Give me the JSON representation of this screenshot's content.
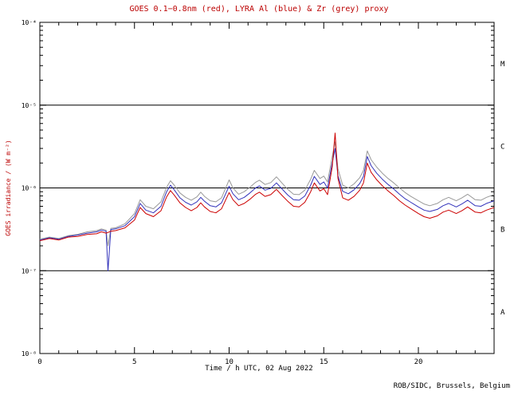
{
  "chart_data": {
    "type": "line",
    "title": "GOES 0.1−0.8nm (red), LYRA Al (blue) & Zr (grey) proxy",
    "xlabel": "Time / h UTC, 02 Aug 2022",
    "ylabel": "GOES irradiance / (W m⁻²)",
    "x_range": [
      0,
      24
    ],
    "x_major_ticks": [
      0,
      5,
      10,
      15,
      20
    ],
    "x_tick_labels": [
      "0",
      "5",
      "10",
      "15",
      "20"
    ],
    "x_minor_step": 1,
    "y_scale": "log",
    "ylim": [
      1e-08,
      0.0001
    ],
    "y_decades": [
      -4,
      -5,
      -6,
      -7,
      -8
    ],
    "y_tick_labels": [
      "10⁻⁴",
      "10⁻⁵",
      "10⁻⁶",
      "10⁻⁷",
      "10⁻⁸"
    ],
    "hlines": [
      1e-05,
      1e-06,
      1e-07
    ],
    "grid": "off",
    "legend": "in-title",
    "flare_classes": [
      {
        "label": "M",
        "log_center": -4.5
      },
      {
        "label": "C",
        "log_center": -5.5
      },
      {
        "label": "B",
        "log_center": -6.5
      },
      {
        "label": "A",
        "log_center": -7.5
      }
    ],
    "x": [
      0,
      0.5,
      1,
      1.5,
      2,
      2.5,
      3,
      3.25,
      3.5,
      3.6,
      3.75,
      4,
      4.5,
      5,
      5.3,
      5.6,
      6,
      6.4,
      6.7,
      6.9,
      7.1,
      7.4,
      7.7,
      8,
      8.3,
      8.5,
      8.7,
      9,
      9.3,
      9.6,
      10,
      10.2,
      10.5,
      10.8,
      11.1,
      11.4,
      11.6,
      11.9,
      12.2,
      12.5,
      12.8,
      13.1,
      13.4,
      13.7,
      14,
      14.3,
      14.5,
      14.8,
      15,
      15.2,
      15.45,
      15.6,
      15.75,
      16,
      16.3,
      16.6,
      16.9,
      17.1,
      17.3,
      17.5,
      17.8,
      18.1,
      18.4,
      18.7,
      19,
      19.3,
      19.6,
      20,
      20.3,
      20.6,
      21,
      21.3,
      21.6,
      22,
      22.3,
      22.6,
      23,
      23.3,
      23.6,
      24
    ],
    "series": [
      {
        "id": "goes-01-08nm",
        "name": "GOES 0.1-0.8nm",
        "color": "#cc0000",
        "values": [
          2.3e-07,
          2.45e-07,
          2.35e-07,
          2.55e-07,
          2.6e-07,
          2.75e-07,
          2.8e-07,
          2.95e-07,
          2.85e-07,
          2.9e-07,
          3e-07,
          3.05e-07,
          3.3e-07,
          4.1e-07,
          5.8e-07,
          4.9e-07,
          4.5e-07,
          5.3e-07,
          7.8e-07,
          9.3e-07,
          8.2e-07,
          6.6e-07,
          5.8e-07,
          5.3e-07,
          5.8e-07,
          6.6e-07,
          5.9e-07,
          5.2e-07,
          5e-07,
          5.6e-07,
          8.8e-07,
          7.2e-07,
          6.1e-07,
          6.5e-07,
          7.3e-07,
          8.4e-07,
          8.9e-07,
          7.9e-07,
          8.3e-07,
          9.6e-07,
          8.1e-07,
          6.9e-07,
          6e-07,
          5.9e-07,
          6.7e-07,
          8.9e-07,
          1.15e-06,
          9.2e-07,
          9.8e-07,
          8.3e-07,
          1.8e-06,
          4.6e-06,
          1.3e-06,
          7.6e-07,
          7.1e-07,
          7.9e-07,
          9.4e-07,
          1.15e-06,
          2e-06,
          1.55e-06,
          1.25e-06,
          1.06e-06,
          9.2e-07,
          8.1e-07,
          7e-07,
          6.2e-07,
          5.6e-07,
          4.9e-07,
          4.5e-07,
          4.3e-07,
          4.6e-07,
          5.1e-07,
          5.4e-07,
          4.9e-07,
          5.3e-07,
          5.9e-07,
          5.1e-07,
          5e-07,
          5.4e-07,
          5.8e-07
        ]
      },
      {
        "id": "lyra-al-proxy",
        "name": "LYRA Al proxy",
        "color": "#3333bb",
        "values": [
          2.35e-07,
          2.5e-07,
          2.4e-07,
          2.6e-07,
          2.7e-07,
          2.85e-07,
          2.95e-07,
          3.1e-07,
          3e-07,
          1e-07,
          3.15e-07,
          3.2e-07,
          3.5e-07,
          4.5e-07,
          6.5e-07,
          5.4e-07,
          5e-07,
          6e-07,
          9e-07,
          1.08e-06,
          9.5e-07,
          7.6e-07,
          6.7e-07,
          6.2e-07,
          6.8e-07,
          7.7e-07,
          6.9e-07,
          6.1e-07,
          5.9e-07,
          6.6e-07,
          1.05e-06,
          8.5e-07,
          7.2e-07,
          7.7e-07,
          8.7e-07,
          1e-06,
          1.06e-06,
          9.4e-07,
          9.9e-07,
          1.15e-06,
          9.7e-07,
          8.2e-07,
          7.2e-07,
          7.1e-07,
          8e-07,
          1.07e-06,
          1.38e-06,
          1.1e-06,
          1.18e-06,
          1e-06,
          2e-06,
          3e-06,
          1.4e-06,
          9.1e-07,
          8.5e-07,
          9.5e-07,
          1.13e-06,
          1.38e-06,
          2.4e-06,
          1.86e-06,
          1.5e-06,
          1.27e-06,
          1.1e-06,
          9.7e-07,
          8.4e-07,
          7.4e-07,
          6.7e-07,
          5.9e-07,
          5.4e-07,
          5.2e-07,
          5.5e-07,
          6.1e-07,
          6.5e-07,
          5.9e-07,
          6.4e-07,
          7.1e-07,
          6.1e-07,
          6e-07,
          6.5e-07,
          7e-07
        ]
      },
      {
        "id": "lyra-zr-proxy",
        "name": "LYRA Zr proxy",
        "color": "#999999",
        "values": [
          2.4e-07,
          2.55e-07,
          2.45e-07,
          2.65e-07,
          2.75e-07,
          2.95e-07,
          3.05e-07,
          3.2e-07,
          3.1e-07,
          2e-07,
          3.25e-07,
          3.3e-07,
          3.7e-07,
          4.9e-07,
          7.2e-07,
          6e-07,
          5.6e-07,
          6.8e-07,
          1.02e-06,
          1.22e-06,
          1.08e-06,
          8.7e-07,
          7.7e-07,
          7.1e-07,
          7.8e-07,
          8.9e-07,
          7.9e-07,
          7e-07,
          6.8e-07,
          7.6e-07,
          1.25e-06,
          1e-06,
          8.4e-07,
          9e-07,
          1.02e-06,
          1.17e-06,
          1.24e-06,
          1.1e-06,
          1.16e-06,
          1.36e-06,
          1.14e-06,
          9.6e-07,
          8.4e-07,
          8.3e-07,
          9.4e-07,
          1.26e-06,
          1.63e-06,
          1.3e-06,
          1.39e-06,
          1.18e-06,
          2.4e-06,
          3.6e-06,
          1.7e-06,
          1.08e-06,
          1e-06,
          1.12e-06,
          1.33e-06,
          1.63e-06,
          2.8e-06,
          2.2e-06,
          1.78e-06,
          1.5e-06,
          1.3e-06,
          1.15e-06,
          1e-06,
          8.8e-07,
          7.9e-07,
          7e-07,
          6.4e-07,
          6.1e-07,
          6.5e-07,
          7.2e-07,
          7.7e-07,
          7e-07,
          7.6e-07,
          8.4e-07,
          7.2e-07,
          7.1e-07,
          7.7e-07,
          8.3e-07
        ]
      }
    ]
  },
  "footer": {
    "credit": "ROB/SIDC, Brussels, Belgium"
  },
  "colors": {
    "title": "#bb0000",
    "axis": "#000000",
    "background": "#ffffff"
  }
}
